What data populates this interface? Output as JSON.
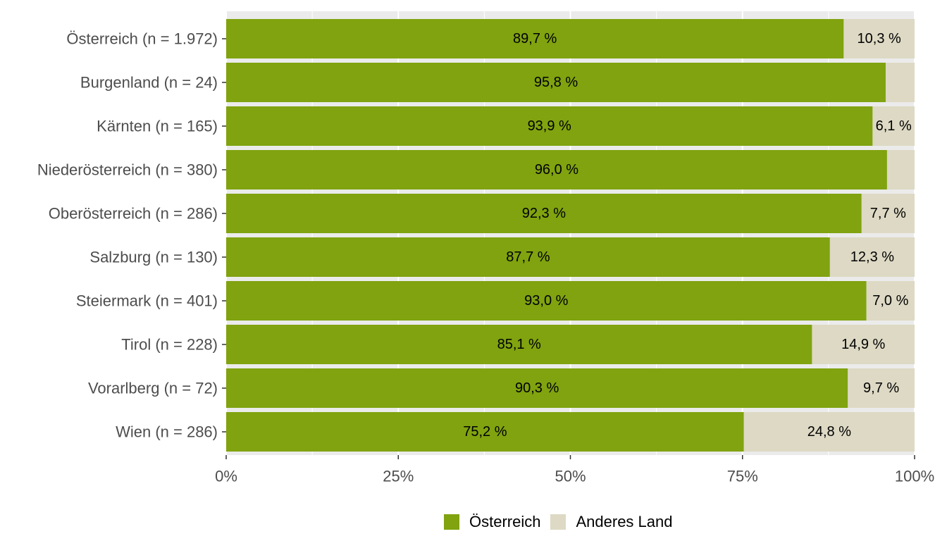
{
  "chart_data": {
    "type": "bar",
    "orientation": "horizontal",
    "stacked": true,
    "categories": [
      "Österreich (n = 1.972)",
      "Burgenland (n = 24)",
      "Kärnten (n = 165)",
      "Niederösterreich (n = 380)",
      "Oberösterreich (n = 286)",
      "Salzburg (n = 130)",
      "Steiermark (n = 401)",
      "Tirol (n = 228)",
      "Vorarlberg (n = 72)",
      "Wien (n = 286)"
    ],
    "series": [
      {
        "name": "Österreich",
        "color": "#80a30f",
        "values": [
          89.7,
          95.8,
          93.9,
          96.0,
          92.3,
          87.7,
          93.0,
          85.1,
          90.3,
          75.2
        ],
        "labels": [
          "89,7 %",
          "95,8 %",
          "93,9 %",
          "96,0 %",
          "92,3 %",
          "87,7 %",
          "93,0 %",
          "85,1 %",
          "90,3 %",
          "75,2 %"
        ]
      },
      {
        "name": "Anderes Land",
        "color": "#ddd9c4",
        "values": [
          10.3,
          4.2,
          6.1,
          4.0,
          7.7,
          12.3,
          7.0,
          14.9,
          9.7,
          24.8
        ],
        "labels": [
          "10,3 %",
          "",
          "6,1 %",
          "",
          "7,7 %",
          "12,3 %",
          "7,0 %",
          "14,9 %",
          "9,7 %",
          "24,8 %"
        ]
      }
    ],
    "xlim": [
      0,
      100
    ],
    "x_ticks": [
      0,
      25,
      50,
      75,
      100
    ],
    "x_tick_labels": [
      "0%",
      "25%",
      "50%",
      "75%",
      "100%"
    ],
    "title": "",
    "xlabel": "",
    "ylabel": "",
    "grid": true,
    "panel_background": "#ebebeb",
    "legend_position": "bottom"
  },
  "legend": {
    "items": [
      {
        "label": "Österreich",
        "color": "#80a30f"
      },
      {
        "label": "Anderes Land",
        "color": "#ddd9c4"
      }
    ]
  }
}
